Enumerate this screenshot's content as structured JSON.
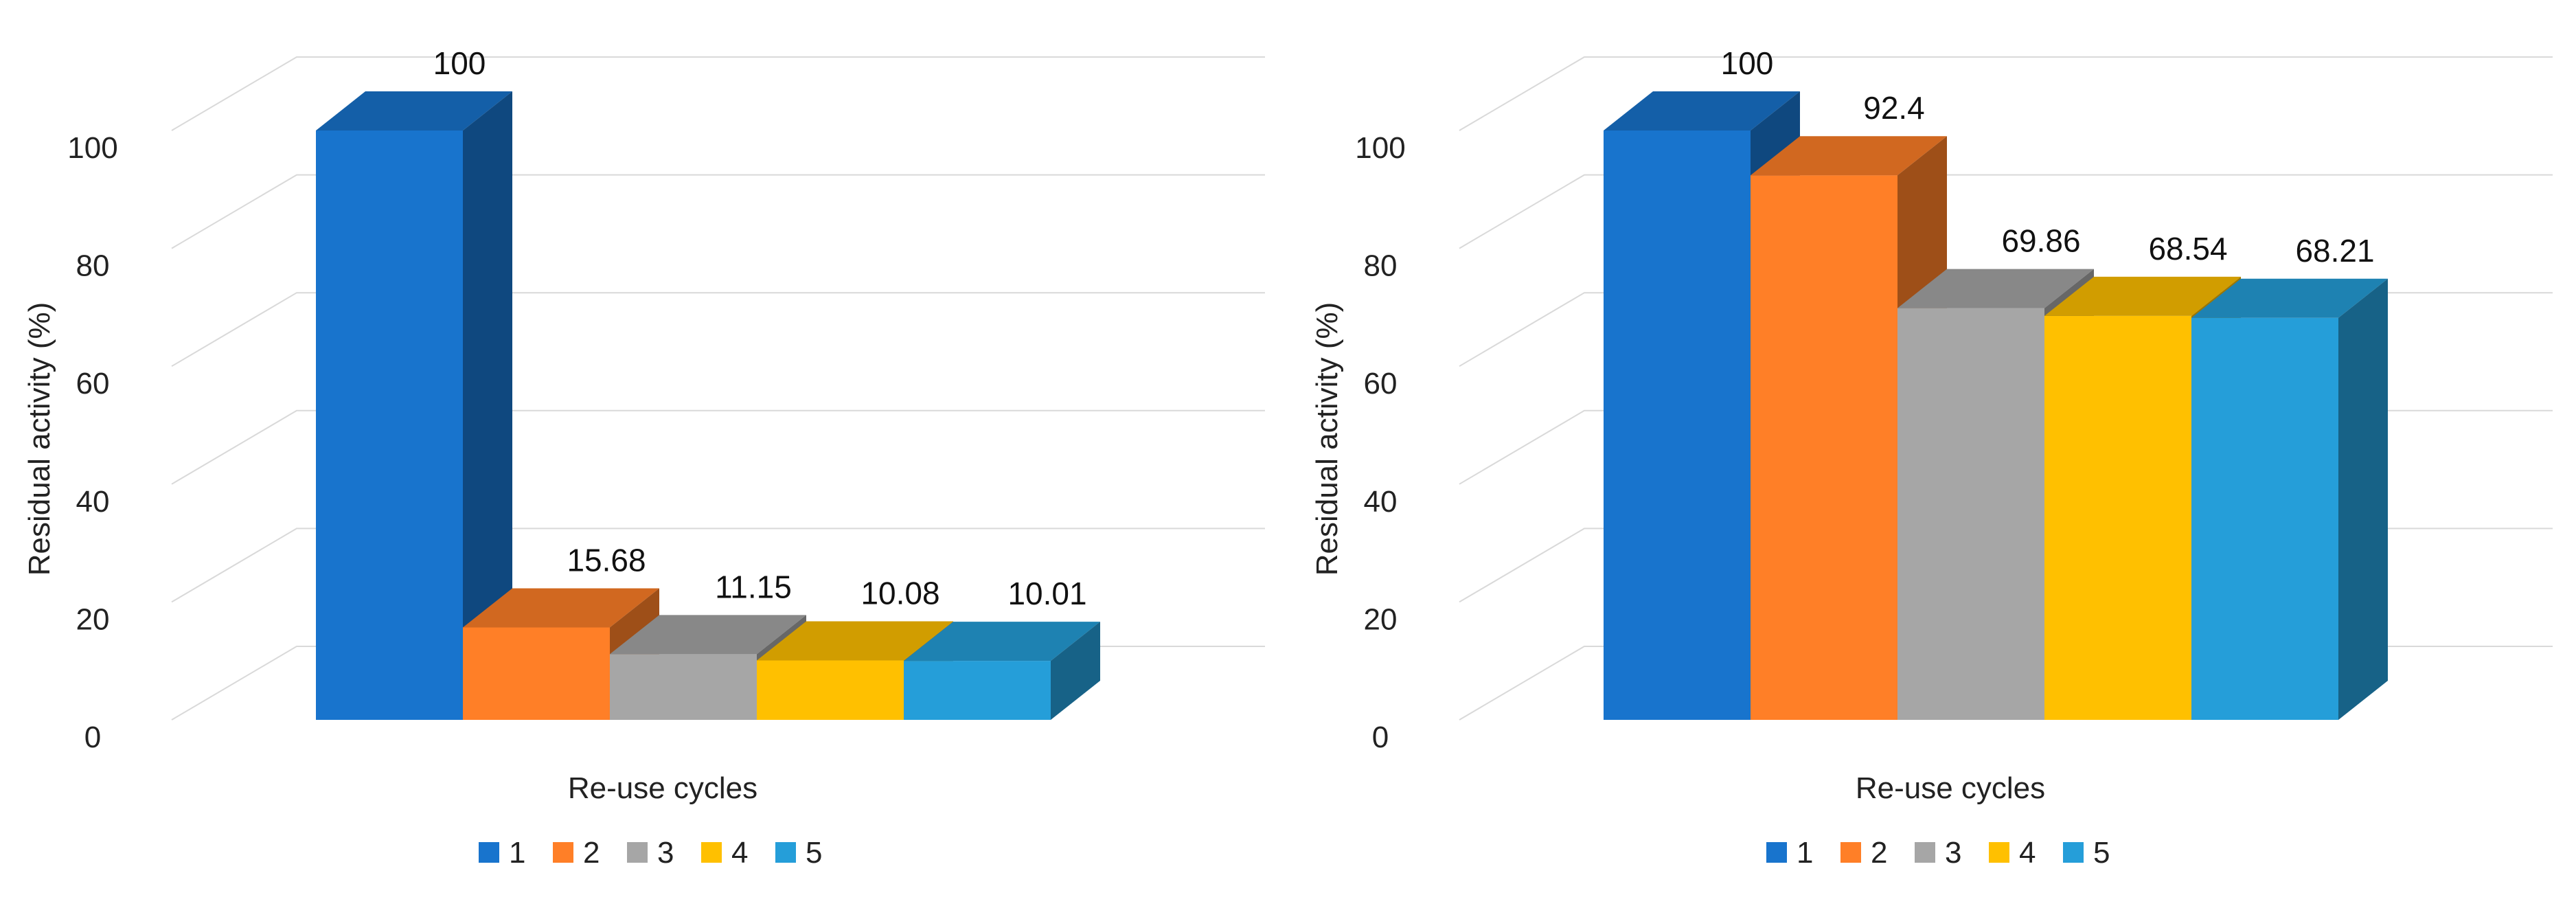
{
  "chart_data": [
    {
      "type": "bar",
      "variant": "3d-clustered",
      "title": "",
      "xlabel": "Re-use cycles",
      "ylabel": "Residual activity (%)",
      "ylim": [
        0,
        100
      ],
      "yticks": [
        "0",
        "20",
        "40",
        "60",
        "80",
        "100"
      ],
      "grid": true,
      "legend_position": "bottom",
      "series": [
        {
          "name": "1",
          "color": "#1874CD",
          "value": 100,
          "label": "100"
        },
        {
          "name": "2",
          "color": "#FF7F27",
          "value": 15.68,
          "label": "15.68"
        },
        {
          "name": "3",
          "color": "#A6A6A6",
          "value": 11.15,
          "label": "11.15"
        },
        {
          "name": "4",
          "color": "#FFC000",
          "value": 10.08,
          "label": "10.08"
        },
        {
          "name": "5",
          "color": "#259ED9",
          "value": 10.01,
          "label": "10.01"
        }
      ]
    },
    {
      "type": "bar",
      "variant": "3d-clustered",
      "title": "",
      "xlabel": "Re-use cycles",
      "ylabel": "Residual activity (%)",
      "ylim": [
        0,
        100
      ],
      "yticks": [
        "0",
        "20",
        "40",
        "60",
        "80",
        "100"
      ],
      "grid": true,
      "legend_position": "bottom",
      "series": [
        {
          "name": "1",
          "color": "#1874CD",
          "value": 100,
          "label": "100"
        },
        {
          "name": "2",
          "color": "#FF7F27",
          "value": 92.4,
          "label": "92.4"
        },
        {
          "name": "3",
          "color": "#A6A6A6",
          "value": 69.86,
          "label": "69.86"
        },
        {
          "name": "4",
          "color": "#FFC000",
          "value": 68.54,
          "label": "68.54"
        },
        {
          "name": "5",
          "color": "#259ED9",
          "value": 68.21,
          "label": "68.21"
        }
      ]
    }
  ]
}
